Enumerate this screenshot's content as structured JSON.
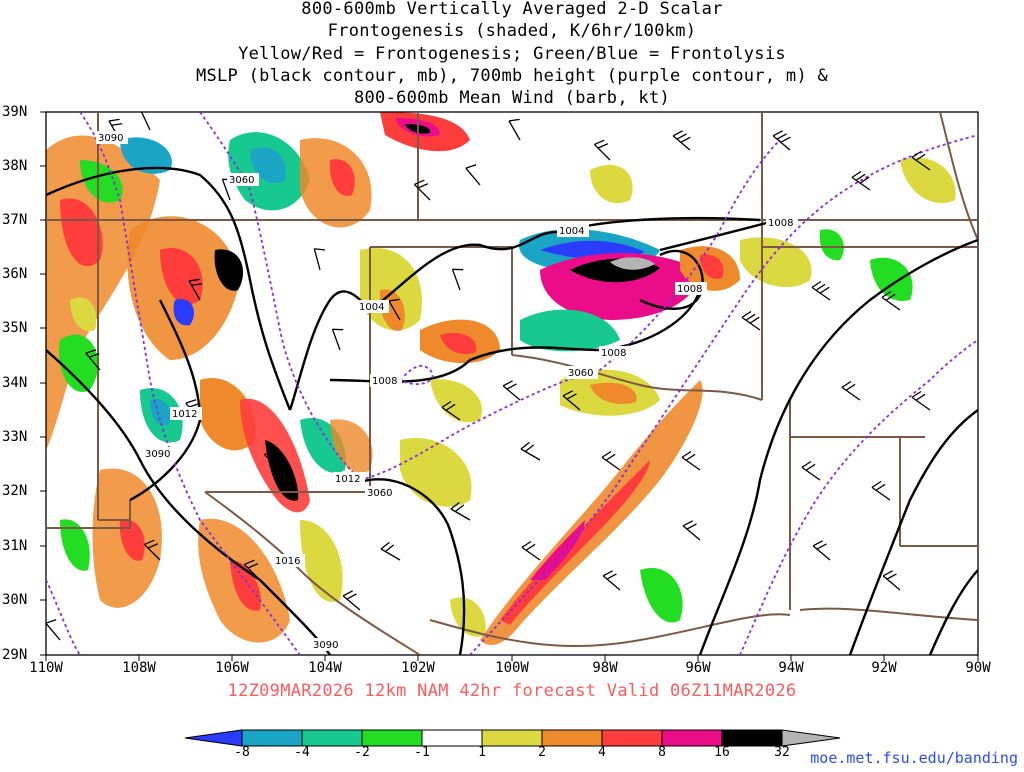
{
  "title": {
    "lines": [
      "800-600mb Vertically Averaged 2-D Scalar",
      "Frontogenesis (shaded, K/6hr/100km)",
      "Yellow/Red = Frontogenesis;  Green/Blue = Frontolysis",
      "MSLP (black contour, mb), 700mb height (purple contour, m) &",
      "800-600mb Mean Wind (barb, kt)"
    ]
  },
  "map": {
    "lat_labels": [
      "39N",
      "38N",
      "37N",
      "36N",
      "35N",
      "34N",
      "33N",
      "32N",
      "31N",
      "30N",
      "29N"
    ],
    "lon_labels": [
      "110W",
      "108W",
      "106W",
      "104W",
      "102W",
      "100W",
      "98W",
      "96W",
      "94W",
      "92W",
      "90W"
    ],
    "mslp_labels": [
      "1004",
      "1008",
      "1012",
      "1016",
      "1008",
      "1004",
      "1008",
      "1012",
      "1008"
    ],
    "height_labels": [
      "3090",
      "3060",
      "3060",
      "3090",
      "3060",
      "3090"
    ],
    "colors": {
      "state_border": "#7a5a46",
      "mslp_contour": "#000000",
      "height_contour": "#8a2be2"
    }
  },
  "valid_line": "12Z09MAR2026 12km NAM 42hr forecast Valid 06Z11MAR2026",
  "colorbar": {
    "labels": [
      "-8",
      "-4",
      "-2",
      "-1",
      "1",
      "2",
      "4",
      "8",
      "16",
      "32"
    ],
    "colors": [
      "#2a3cff",
      "#1ba5c4",
      "#17c98f",
      "#22dd22",
      "#ffffff",
      "#dcd840",
      "#ee8a2c",
      "#ff3d3d",
      "#ea0c88",
      "#000000",
      "#b4b4b4"
    ]
  },
  "source_url": "moe.met.fsu.edu/banding"
}
